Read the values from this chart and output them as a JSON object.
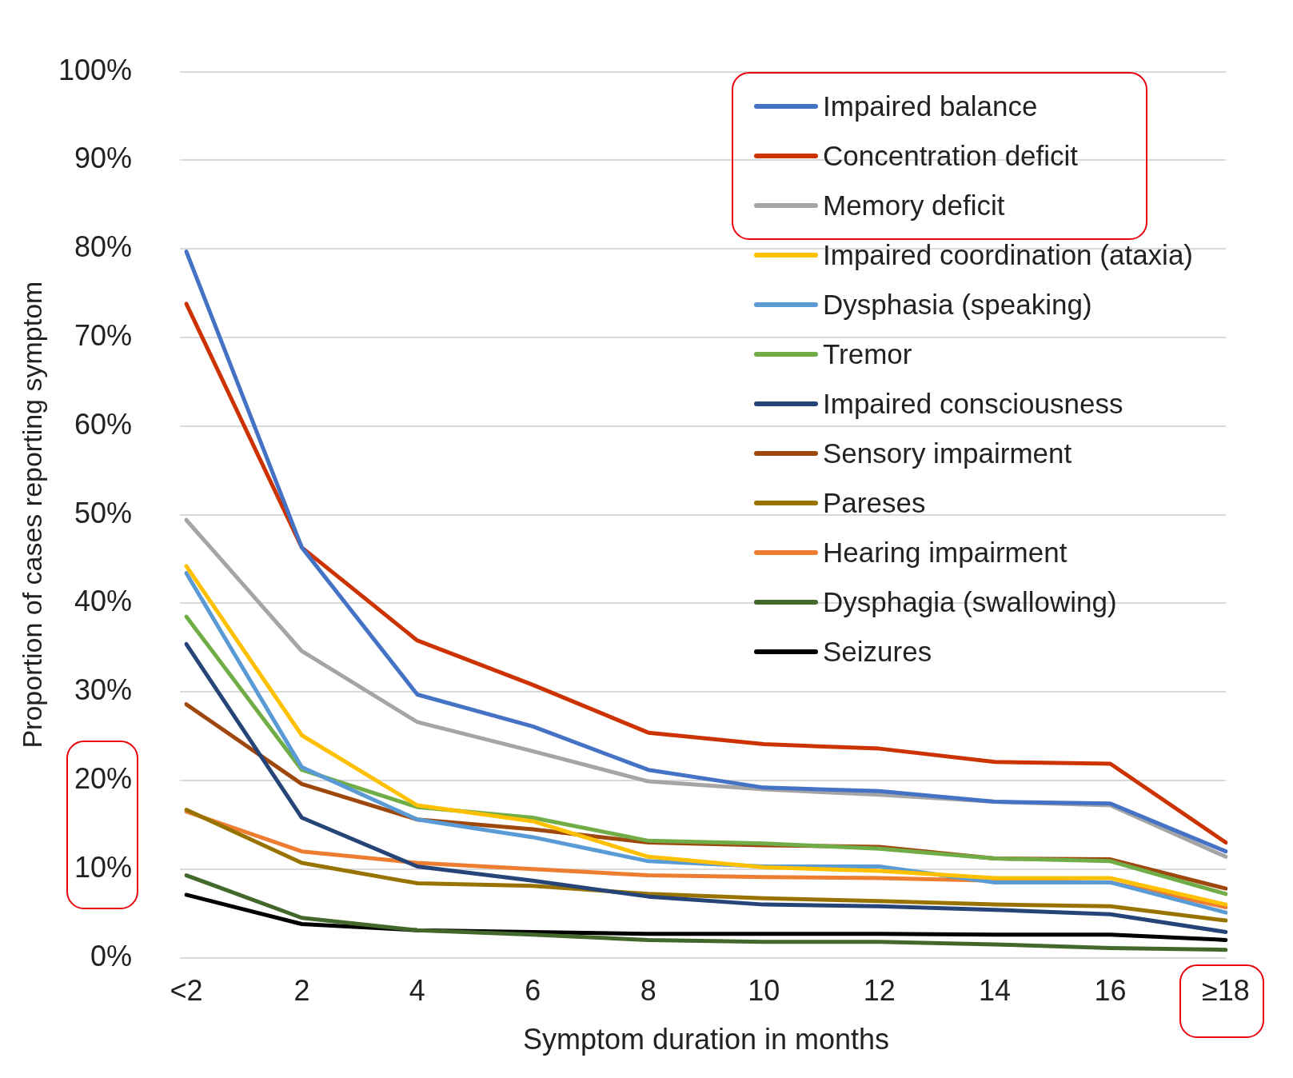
{
  "chart_data": {
    "type": "line",
    "xlabel": "Symptom duration in months",
    "ylabel": "Proportion of cases reporting symptom",
    "categories": [
      "<2",
      "2",
      "4",
      "6",
      "8",
      "10",
      "12",
      "14",
      "16",
      "≥18"
    ],
    "ylim": [
      0,
      100
    ],
    "yticks": [
      {
        "value": 0,
        "label": "0%"
      },
      {
        "value": 10,
        "label": "10%"
      },
      {
        "value": 20,
        "label": "20%"
      },
      {
        "value": 30,
        "label": "30%"
      },
      {
        "value": 40,
        "label": "40%"
      },
      {
        "value": 50,
        "label": "50%"
      },
      {
        "value": 60,
        "label": "60%"
      },
      {
        "value": 70,
        "label": "70%"
      },
      {
        "value": 80,
        "label": "80%"
      },
      {
        "value": 90,
        "label": "90%"
      },
      {
        "value": 100,
        "label": "100%"
      }
    ],
    "grid": "y",
    "legend": "top right",
    "series": [
      {
        "name": "Impaired balance",
        "color": "#4472c4",
        "values": [
          79.7,
          46.3,
          29.7,
          26.1,
          21.2,
          19.2,
          18.8,
          17.6,
          17.4,
          12.0
        ]
      },
      {
        "name": "Concentration deficit",
        "color": "#cc3300",
        "values": [
          73.8,
          46.3,
          35.8,
          30.8,
          25.4,
          24.1,
          23.6,
          22.1,
          21.9,
          13.0
        ]
      },
      {
        "name": "Memory deficit",
        "color": "#a5a5a5",
        "values": [
          49.4,
          34.6,
          26.6,
          23.3,
          19.9,
          19.0,
          18.4,
          17.6,
          17.2,
          11.4
        ]
      },
      {
        "name": "Impaired coordination (ataxia)",
        "color": "#ffc000",
        "values": [
          44.2,
          25.1,
          17.2,
          15.4,
          11.4,
          10.2,
          9.8,
          9.0,
          9.0,
          6.0
        ]
      },
      {
        "name": "Dysphasia (speaking)",
        "color": "#5b9bd5",
        "values": [
          43.4,
          21.5,
          15.6,
          13.6,
          10.9,
          10.3,
          10.3,
          8.5,
          8.5,
          5.1
        ]
      },
      {
        "name": "Tremor",
        "color": "#70ad47",
        "values": [
          38.5,
          21.2,
          17.0,
          15.8,
          13.2,
          12.9,
          12.3,
          11.2,
          10.9,
          7.2
        ]
      },
      {
        "name": "Impaired consciousness",
        "color": "#264478",
        "values": [
          35.4,
          15.8,
          10.3,
          8.7,
          6.9,
          6.0,
          5.8,
          5.4,
          4.9,
          2.9
        ]
      },
      {
        "name": "Sensory impairment",
        "color": "#9e480e",
        "values": [
          28.6,
          19.6,
          15.6,
          14.5,
          13.0,
          12.7,
          12.5,
          11.2,
          11.1,
          7.8
        ]
      },
      {
        "name": "Pareses",
        "color": "#997300",
        "values": [
          16.7,
          10.7,
          8.4,
          8.1,
          7.2,
          6.7,
          6.4,
          6.0,
          5.8,
          4.2
        ]
      },
      {
        "name": "Hearing impairment",
        "color": "#ed7d31",
        "values": [
          16.5,
          12.0,
          10.7,
          10.0,
          9.3,
          9.1,
          9.0,
          8.7,
          8.5,
          5.7
        ]
      },
      {
        "name": "Dysphagia (swallowing)",
        "color": "#43682b",
        "values": [
          9.3,
          4.5,
          3.1,
          2.6,
          2.0,
          1.8,
          1.8,
          1.5,
          1.1,
          0.9
        ]
      },
      {
        "name": "Seizures",
        "color": "#000000",
        "values": [
          7.1,
          3.8,
          3.1,
          2.9,
          2.7,
          2.7,
          2.7,
          2.6,
          2.6,
          2.0
        ]
      }
    ]
  }
}
